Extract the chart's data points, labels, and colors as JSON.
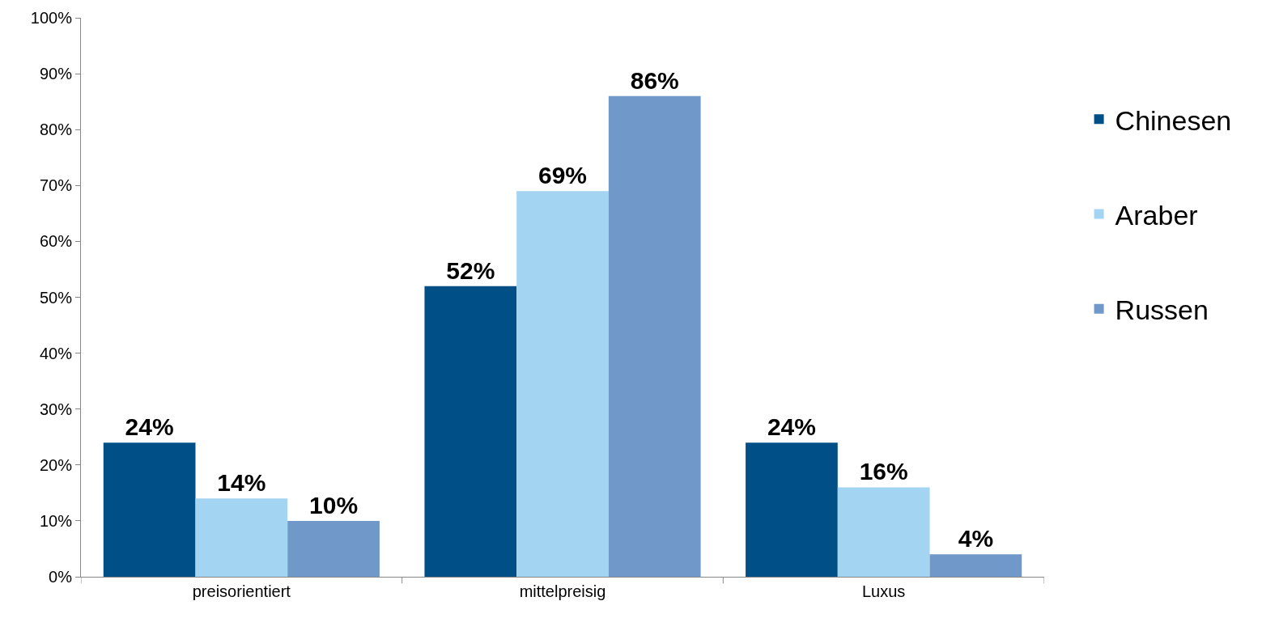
{
  "chart_data": {
    "type": "bar",
    "categories": [
      "preisorientiert",
      "mittelpreisig",
      "Luxus"
    ],
    "series": [
      {
        "name": "Chinesen",
        "color": "#004f86",
        "values": [
          24,
          52,
          24
        ],
        "value_labels": [
          "24%",
          "52%",
          "24%"
        ]
      },
      {
        "name": "Araber",
        "color": "#a3d4f2",
        "values": [
          14,
          69,
          16
        ],
        "value_labels": [
          "14%",
          "69%",
          "16%"
        ]
      },
      {
        "name": "Russen",
        "color": "#7098c9",
        "values": [
          10,
          86,
          4
        ],
        "value_labels": [
          "10%",
          "86%",
          "4%"
        ]
      }
    ],
    "ylim": [
      0,
      100
    ],
    "yticks": [
      {
        "value": 0,
        "label": "0%"
      },
      {
        "value": 10,
        "label": "10%"
      },
      {
        "value": 20,
        "label": "20%"
      },
      {
        "value": 30,
        "label": "30%"
      },
      {
        "value": 40,
        "label": "40%"
      },
      {
        "value": 50,
        "label": "50%"
      },
      {
        "value": 60,
        "label": "60%"
      },
      {
        "value": 70,
        "label": "70%"
      },
      {
        "value": 80,
        "label": "80%"
      },
      {
        "value": 90,
        "label": "90%"
      },
      {
        "value": 100,
        "label": "100%"
      }
    ],
    "legend": "right"
  }
}
